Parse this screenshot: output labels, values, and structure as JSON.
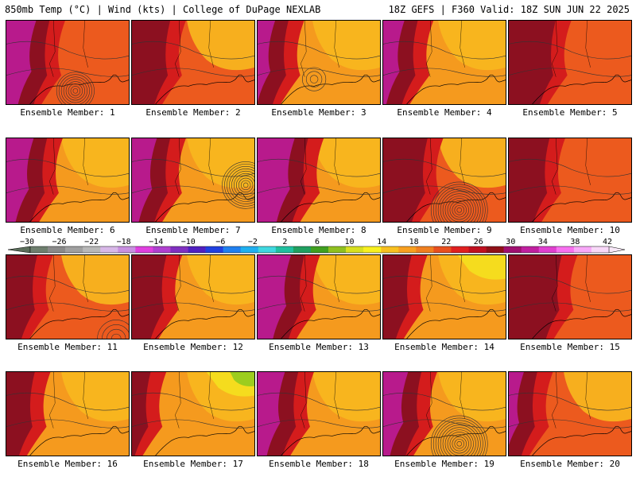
{
  "header": {
    "left": "850mb Temp (°C) | Wind (kts) | College of DuPage NEXLAB",
    "right": "18Z GEFS | F360 Valid: 18Z SUN JUN 22 2025"
  },
  "members": [
    {
      "label": "Ensemble Member: 1"
    },
    {
      "label": "Ensemble Member: 2"
    },
    {
      "label": "Ensemble Member: 3"
    },
    {
      "label": "Ensemble Member: 4"
    },
    {
      "label": "Ensemble Member: 5"
    },
    {
      "label": "Ensemble Member: 6"
    },
    {
      "label": "Ensemble Member: 7"
    },
    {
      "label": "Ensemble Member: 8"
    },
    {
      "label": "Ensemble Member: 9"
    },
    {
      "label": "Ensemble Member: 10"
    },
    {
      "label": "Ensemble Member: 11"
    },
    {
      "label": "Ensemble Member: 12"
    },
    {
      "label": "Ensemble Member: 13"
    },
    {
      "label": "Ensemble Member: 14"
    },
    {
      "label": "Ensemble Member: 15"
    },
    {
      "label": "Ensemble Member: 16"
    },
    {
      "label": "Ensemble Member: 17"
    },
    {
      "label": "Ensemble Member: 18"
    },
    {
      "label": "Ensemble Member: 19"
    },
    {
      "label": "Ensemble Member: 20"
    }
  ],
  "colorbar": {
    "labels": [
      "−30",
      "−26",
      "−22",
      "−18",
      "−14",
      "−10",
      "−6",
      "−2",
      "2",
      "6",
      "10",
      "14",
      "18",
      "22",
      "26",
      "30",
      "34",
      "38",
      "42"
    ],
    "colors": [
      "#6e7f6e",
      "#8a8a8a",
      "#a0a0a0",
      "#b8b8b8",
      "#d8b8e8",
      "#c890e0",
      "#e040e0",
      "#b040d0",
      "#8030c0",
      "#5020c0",
      "#2040e0",
      "#2080f0",
      "#20b0f0",
      "#40d8e0",
      "#20c0a0",
      "#20a060",
      "#40a020",
      "#90c020",
      "#d8e020",
      "#f8f020",
      "#f8c020",
      "#f8a020",
      "#f08020",
      "#e85020",
      "#e02020",
      "#c01020",
      "#901018",
      "#a01070",
      "#c020a0",
      "#e040d0",
      "#f870f0",
      "#f8a8f8",
      "#f8d8f8"
    ]
  },
  "map_colors": {
    "purple": "#b81a8c",
    "darkred": "#8c1020",
    "red": "#d41c1c",
    "orange_red": "#ec5a1e",
    "orange": "#f59a1e",
    "light_orange": "#f8b81e",
    "yellow": "#f5dc1e",
    "green": "#9ccd1e"
  },
  "panel_style": {
    "1": {
      "westExtent": 0.32,
      "purple": true,
      "cyclone": "center-low",
      "warm": 0.8
    },
    "2": {
      "westExtent": 0.28,
      "purple": false,
      "cyclone": "none",
      "warm": 0.7
    },
    "3": {
      "westExtent": 0.22,
      "purple": true,
      "cyclone": "center",
      "warm": 0.5
    },
    "4": {
      "westExtent": 0.25,
      "purple": true,
      "cyclone": "none",
      "warm": 0.4
    },
    "5": {
      "westExtent": 0.35,
      "purple": false,
      "cyclone": "none",
      "warm": 0.9
    },
    "6": {
      "westExtent": 0.3,
      "purple": true,
      "cyclone": "none",
      "warm": 0.4
    },
    "7": {
      "westExtent": 0.28,
      "purple": true,
      "cyclone": "east",
      "warm": 0.5
    },
    "8": {
      "westExtent": 0.38,
      "purple": true,
      "cyclone": "none",
      "warm": 0.6
    },
    "9": {
      "westExtent": 0.33,
      "purple": false,
      "cyclone": "south-big",
      "warm": 0.7
    },
    "10": {
      "westExtent": 0.3,
      "purple": false,
      "cyclone": "none",
      "warm": 0.9
    },
    "11": {
      "westExtent": 0.22,
      "purple": false,
      "cyclone": "south-edge",
      "warm": 0.7
    },
    "12": {
      "westExtent": 0.25,
      "purple": false,
      "cyclone": "none",
      "warm": 0.5
    },
    "13": {
      "westExtent": 0.35,
      "purple": true,
      "cyclone": "none",
      "warm": 0.6
    },
    "14": {
      "westExtent": 0.2,
      "purple": false,
      "cyclone": "none",
      "warm": 0.3
    },
    "15": {
      "westExtent": 0.4,
      "purple": false,
      "cyclone": "none",
      "warm": 0.9
    },
    "16": {
      "westExtent": 0.2,
      "purple": false,
      "cyclone": "none",
      "warm": 0.5
    },
    "17": {
      "westExtent": 0.12,
      "purple": false,
      "cyclone": "none",
      "warm": 0.2
    },
    "18": {
      "westExtent": 0.3,
      "purple": true,
      "cyclone": "none",
      "warm": 0.6
    },
    "19": {
      "westExtent": 0.28,
      "purple": true,
      "cyclone": "south-big",
      "warm": 0.6
    },
    "20": {
      "westExtent": 0.2,
      "purple": true,
      "cyclone": "none",
      "warm": 0.7
    }
  }
}
